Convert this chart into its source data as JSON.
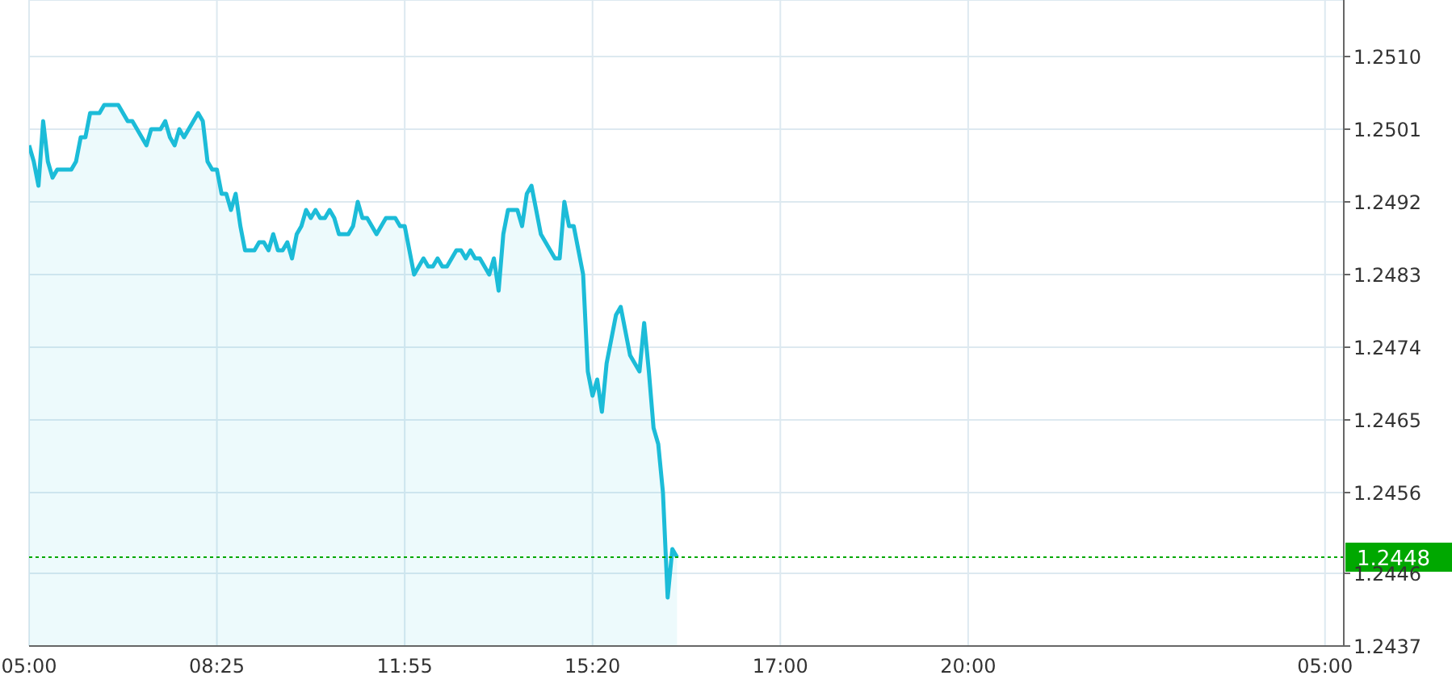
{
  "chart_data": {
    "type": "area",
    "categories": [
      "05:00",
      null,
      null,
      null,
      null,
      null,
      null,
      null,
      null,
      null,
      null,
      null,
      null,
      null,
      null,
      null,
      null,
      null,
      null,
      null,
      null,
      null,
      null,
      null,
      null,
      null,
      null,
      null,
      null,
      null,
      null,
      null,
      null,
      null,
      null,
      null,
      null,
      null,
      null,
      null,
      "08:25",
      null,
      null,
      null,
      null,
      null,
      null,
      null,
      null,
      null,
      null,
      null,
      null,
      null,
      null,
      null,
      null,
      null,
      null,
      null,
      null,
      null,
      null,
      null,
      null,
      null,
      null,
      null,
      null,
      null,
      null,
      null,
      null,
      null,
      null,
      null,
      null,
      null,
      null,
      null,
      "11:55",
      null,
      null,
      null,
      null,
      null,
      null,
      null,
      null,
      null,
      null,
      null,
      null,
      null,
      null,
      null,
      null,
      null,
      null,
      null,
      null,
      null,
      null,
      null,
      null,
      null,
      null,
      null,
      null,
      null,
      null,
      null,
      null,
      null,
      null,
      null,
      null,
      null,
      null,
      null,
      "15:20",
      null,
      null,
      null,
      null,
      null,
      null,
      null,
      null,
      null,
      null,
      null,
      null,
      null,
      null,
      null,
      null,
      null,
      null,
      null,
      null,
      null,
      null,
      null,
      null,
      null,
      null,
      null,
      null,
      null,
      null,
      null,
      null,
      null,
      null,
      null,
      null,
      null,
      null,
      null,
      "17:00",
      null,
      null,
      null,
      null,
      null,
      null,
      null,
      null,
      null,
      null,
      null,
      null,
      null,
      null,
      null,
      null,
      null,
      null,
      null,
      null,
      null,
      null,
      null,
      null,
      null,
      null,
      null,
      null,
      null,
      null,
      null,
      null,
      null,
      null,
      null,
      null,
      null,
      null,
      null,
      "20:00",
      null,
      null,
      null,
      null,
      null,
      null,
      null,
      null,
      null,
      null,
      null,
      null,
      null,
      null,
      null,
      null,
      null,
      null,
      null,
      null,
      null,
      null,
      null,
      null,
      null,
      null,
      null,
      null,
      null,
      null,
      null,
      null,
      null,
      null,
      null,
      null,
      null,
      null,
      null,
      null,
      null,
      null,
      null,
      null,
      null,
      null,
      null,
      null,
      null,
      null,
      null,
      null,
      null,
      null,
      null,
      null,
      null,
      null,
      null,
      null,
      null,
      null,
      null,
      null,
      null,
      null,
      null,
      null,
      null,
      null,
      null,
      null,
      null,
      null,
      null,
      "05:00",
      null,
      null,
      null,
      null
    ],
    "series": [
      {
        "color": "#1cbcd8",
        "values": [
          1.2499,
          1.2497,
          1.2494,
          1.2502,
          1.2497,
          1.2495,
          1.2496,
          1.2496,
          1.2496,
          1.2496,
          1.2497,
          1.25,
          1.25,
          1.2503,
          1.2503,
          1.2503,
          1.2504,
          1.2504,
          1.2504,
          1.2504,
          1.2503,
          1.2502,
          1.2502,
          1.2501,
          1.25,
          1.2499,
          1.2501,
          1.2501,
          1.2501,
          1.2502,
          1.25,
          1.2499,
          1.2501,
          1.25,
          1.2501,
          1.2502,
          1.2503,
          1.2502,
          1.2497,
          1.2496,
          1.2496,
          1.2493,
          1.2493,
          1.2491,
          1.2493,
          1.2489,
          1.2486,
          1.2486,
          1.2486,
          1.2487,
          1.2487,
          1.2486,
          1.2488,
          1.2486,
          1.2486,
          1.2487,
          1.2485,
          1.2488,
          1.2489,
          1.2491,
          1.249,
          1.2491,
          1.249,
          1.249,
          1.2491,
          1.249,
          1.2488,
          1.2488,
          1.2488,
          1.2489,
          1.2492,
          1.249,
          1.249,
          1.2489,
          1.2488,
          1.2489,
          1.249,
          1.249,
          1.249,
          1.2489,
          1.2489,
          1.2486,
          1.2483,
          1.2484,
          1.2485,
          1.2484,
          1.2484,
          1.2485,
          1.2484,
          1.2484,
          1.2485,
          1.2486,
          1.2486,
          1.2485,
          1.2486,
          1.2485,
          1.2485,
          1.2484,
          1.2483,
          1.2485,
          1.2481,
          1.2488,
          1.2491,
          1.2491,
          1.2491,
          1.2489,
          1.2493,
          1.2494,
          1.2491,
          1.2488,
          1.2487,
          1.2486,
          1.2485,
          1.2485,
          1.2492,
          1.2489,
          1.2489,
          1.2486,
          1.2483,
          1.2471,
          1.2468,
          1.247,
          1.2466,
          1.2472,
          1.2475,
          1.2478,
          1.2479,
          1.2476,
          1.2473,
          1.2472,
          1.2471,
          1.2477,
          1.2471,
          1.2464,
          1.2462,
          1.2456,
          1.2443,
          1.2449,
          1.2448,
          null,
          null,
          null,
          null,
          null,
          null,
          null,
          null,
          null,
          null,
          null,
          null,
          null,
          null,
          null,
          null,
          null,
          null,
          null,
          null,
          null,
          null,
          null,
          null,
          null,
          null,
          null,
          null,
          null,
          null,
          null,
          null,
          null,
          null,
          null,
          null,
          null,
          null,
          null,
          null,
          null,
          null,
          null,
          null,
          null,
          null,
          null,
          null,
          null,
          null,
          null,
          null,
          null,
          null,
          null,
          null,
          null,
          null,
          null,
          null,
          null,
          null,
          null,
          null,
          null,
          null,
          null,
          null,
          null,
          null,
          null,
          null,
          null,
          null,
          null,
          null,
          null,
          null,
          null,
          null,
          null,
          null,
          null,
          null,
          null,
          null,
          null,
          null,
          null,
          null,
          null,
          null,
          null,
          null,
          null,
          null,
          null,
          null,
          null,
          null,
          null,
          null,
          null,
          null,
          null,
          null,
          null,
          null,
          null,
          null,
          null,
          null,
          null,
          null,
          null,
          null,
          null,
          null,
          null,
          null,
          null,
          null,
          null,
          null,
          null,
          null,
          null,
          null,
          null,
          null,
          null,
          null,
          null,
          null,
          null,
          null,
          null,
          null,
          null,
          null,
          null,
          null
        ]
      }
    ],
    "ylim": [
      1.2437,
      1.2517
    ],
    "yticks": [
      1.2437,
      1.2446,
      1.2456,
      1.2465,
      1.2474,
      1.2483,
      1.2492,
      1.2501,
      {
        "value": 1.251,
        "label": "1.2510"
      }
    ],
    "grid": true,
    "ref_lines": [
      {
        "axis": "y",
        "value": 1.2448,
        "label": "1.2448",
        "color": "#00a800",
        "line_style": "dotted"
      }
    ]
  }
}
